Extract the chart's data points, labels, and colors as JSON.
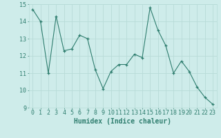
{
  "x": [
    0,
    1,
    2,
    3,
    4,
    5,
    6,
    7,
    8,
    9,
    10,
    11,
    12,
    13,
    14,
    15,
    16,
    17,
    18,
    19,
    20,
    21,
    22,
    23
  ],
  "y": [
    14.7,
    14.0,
    11.0,
    14.3,
    12.3,
    12.4,
    13.2,
    13.0,
    11.2,
    10.1,
    11.1,
    11.5,
    11.5,
    12.1,
    11.9,
    14.8,
    13.5,
    12.6,
    11.0,
    11.7,
    11.1,
    10.2,
    9.6,
    9.2
  ],
  "line_color": "#2e7d6e",
  "marker": "+",
  "bg_color": "#ceecea",
  "grid_color": "#b8dbd8",
  "xlabel": "Humidex (Indice chaleur)",
  "ylim": [
    9,
    15
  ],
  "xlim": [
    -0.5,
    23.5
  ],
  "yticks": [
    9,
    10,
    11,
    12,
    13,
    14,
    15
  ],
  "xticks": [
    0,
    1,
    2,
    3,
    4,
    5,
    6,
    7,
    8,
    9,
    10,
    11,
    12,
    13,
    14,
    15,
    16,
    17,
    18,
    19,
    20,
    21,
    22,
    23
  ],
  "tick_color": "#2e7d6e",
  "label_fontsize": 6.0,
  "xlabel_fontsize": 7.0
}
